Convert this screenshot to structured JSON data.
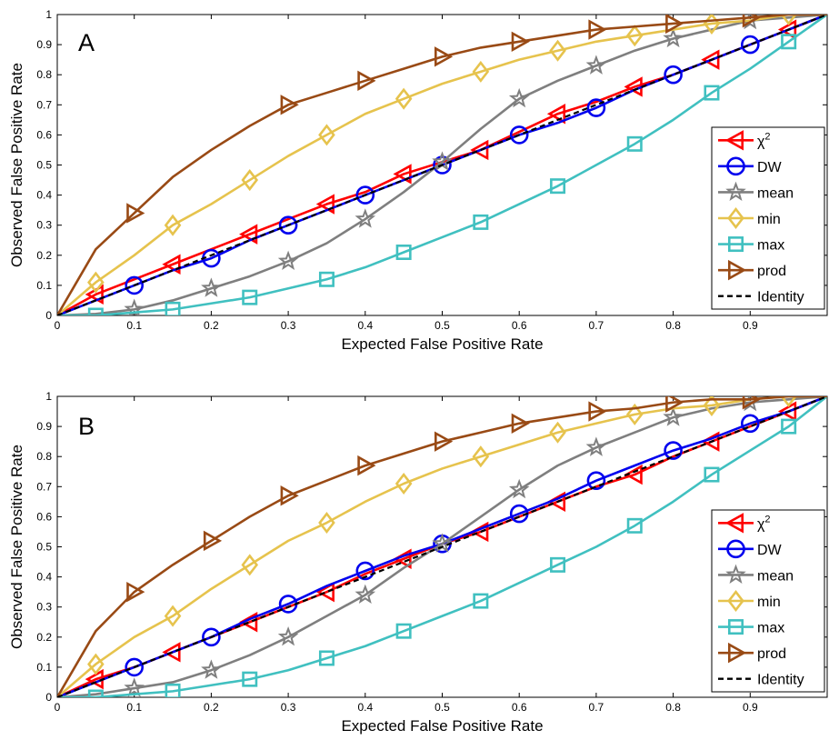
{
  "chart_data": [
    {
      "type": "line",
      "panel_label": "A",
      "xlabel": "Expected False Positive Rate",
      "ylabel": "Observed False Positive Rate",
      "xlim": [
        0,
        1
      ],
      "ylim": [
        0,
        1
      ],
      "xticks": [
        0,
        0.1,
        0.2,
        0.3,
        0.4,
        0.5,
        0.6,
        0.7,
        0.8,
        0.9
      ],
      "xtick_labels": [
        "0",
        "0.1",
        "0.2",
        "0.3",
        "0.4",
        "0.5",
        "0.6",
        "0.7",
        "0.8",
        "0.9"
      ],
      "yticks": [
        0,
        0.1,
        0.2,
        0.3,
        0.4,
        0.5,
        0.6,
        0.7,
        0.8,
        0.9,
        1
      ],
      "ytick_labels": [
        "0",
        "0.1",
        "0.2",
        "0.3",
        "0.4",
        "0.5",
        "0.6",
        "0.7",
        "0.8",
        "0.9",
        "1"
      ],
      "grid": false,
      "legend_position": "right",
      "series": [
        {
          "name": "χ",
          "name_sup": "2",
          "color": "#ff0000",
          "marker": "triangle-left",
          "x": [
            0,
            0.05,
            0.1,
            0.15,
            0.2,
            0.25,
            0.3,
            0.35,
            0.4,
            0.45,
            0.5,
            0.55,
            0.6,
            0.65,
            0.7,
            0.75,
            0.8,
            0.85,
            0.9,
            0.95,
            1
          ],
          "y": [
            0,
            0.07,
            0.12,
            0.17,
            0.22,
            0.27,
            0.32,
            0.37,
            0.41,
            0.47,
            0.51,
            0.55,
            0.61,
            0.67,
            0.71,
            0.76,
            0.8,
            0.85,
            0.9,
            0.95,
            1
          ],
          "marker_x": [
            0.05,
            0.15,
            0.25,
            0.35,
            0.45,
            0.55,
            0.65,
            0.75,
            0.85,
            0.95
          ]
        },
        {
          "name": "DW",
          "color": "#0000ee",
          "marker": "circle",
          "x": [
            0,
            0.05,
            0.1,
            0.15,
            0.2,
            0.25,
            0.3,
            0.35,
            0.4,
            0.45,
            0.5,
            0.55,
            0.6,
            0.65,
            0.7,
            0.75,
            0.8,
            0.85,
            0.9,
            0.95,
            1
          ],
          "y": [
            0,
            0.05,
            0.1,
            0.15,
            0.19,
            0.25,
            0.3,
            0.35,
            0.4,
            0.45,
            0.5,
            0.55,
            0.6,
            0.64,
            0.69,
            0.75,
            0.8,
            0.85,
            0.9,
            0.95,
            1
          ],
          "marker_x": [
            0.1,
            0.2,
            0.3,
            0.4,
            0.5,
            0.6,
            0.7,
            0.8,
            0.9
          ]
        },
        {
          "name": "mean",
          "color": "#7f7f7f",
          "marker": "star",
          "x": [
            0,
            0.05,
            0.1,
            0.15,
            0.2,
            0.25,
            0.3,
            0.35,
            0.4,
            0.45,
            0.5,
            0.55,
            0.6,
            0.65,
            0.7,
            0.75,
            0.8,
            0.85,
            0.9,
            0.95,
            1
          ],
          "y": [
            0,
            0.005,
            0.02,
            0.05,
            0.09,
            0.13,
            0.18,
            0.24,
            0.32,
            0.41,
            0.51,
            0.62,
            0.72,
            0.78,
            0.83,
            0.88,
            0.92,
            0.95,
            0.98,
            0.99,
            1
          ],
          "marker_x": [
            0.1,
            0.2,
            0.3,
            0.4,
            0.5,
            0.6,
            0.7,
            0.8,
            0.9
          ]
        },
        {
          "name": "min",
          "color": "#e6c34d",
          "marker": "diamond",
          "x": [
            0,
            0.05,
            0.1,
            0.15,
            0.2,
            0.25,
            0.3,
            0.35,
            0.4,
            0.45,
            0.5,
            0.55,
            0.6,
            0.65,
            0.7,
            0.75,
            0.8,
            0.85,
            0.9,
            0.95,
            1
          ],
          "y": [
            0,
            0.11,
            0.2,
            0.3,
            0.37,
            0.45,
            0.53,
            0.6,
            0.67,
            0.72,
            0.77,
            0.81,
            0.85,
            0.88,
            0.91,
            0.93,
            0.95,
            0.97,
            0.98,
            1.0,
            1
          ],
          "marker_x": [
            0.05,
            0.15,
            0.25,
            0.35,
            0.45,
            0.55,
            0.65,
            0.75,
            0.85,
            0.95
          ]
        },
        {
          "name": "max",
          "color": "#40c0c0",
          "marker": "square",
          "x": [
            0,
            0.05,
            0.1,
            0.15,
            0.2,
            0.25,
            0.3,
            0.35,
            0.4,
            0.45,
            0.5,
            0.55,
            0.6,
            0.65,
            0.7,
            0.75,
            0.8,
            0.85,
            0.9,
            0.95,
            1
          ],
          "y": [
            0,
            0.0,
            0.01,
            0.02,
            0.04,
            0.06,
            0.09,
            0.12,
            0.16,
            0.21,
            0.26,
            0.31,
            0.37,
            0.43,
            0.5,
            0.57,
            0.65,
            0.74,
            0.82,
            0.91,
            1
          ],
          "marker_x": [
            0.05,
            0.15,
            0.25,
            0.35,
            0.45,
            0.55,
            0.65,
            0.75,
            0.85,
            0.95
          ]
        },
        {
          "name": "prod",
          "color": "#994a15",
          "marker": "triangle-right",
          "x": [
            0,
            0.05,
            0.1,
            0.15,
            0.2,
            0.25,
            0.3,
            0.35,
            0.4,
            0.45,
            0.5,
            0.55,
            0.6,
            0.65,
            0.7,
            0.75,
            0.8,
            0.85,
            0.9,
            0.95,
            1
          ],
          "y": [
            0,
            0.22,
            0.34,
            0.46,
            0.55,
            0.63,
            0.7,
            0.74,
            0.78,
            0.82,
            0.86,
            0.89,
            0.91,
            0.93,
            0.95,
            0.96,
            0.97,
            0.98,
            0.99,
            1.0,
            1
          ],
          "marker_x": [
            0.1,
            0.3,
            0.4,
            0.5,
            0.6,
            0.7,
            0.8,
            0.9
          ]
        },
        {
          "name": "Identity",
          "color": "#000000",
          "marker": "none",
          "dashed": true,
          "x": [
            0,
            1
          ],
          "y": [
            0,
            1
          ],
          "marker_x": []
        }
      ]
    },
    {
      "type": "line",
      "panel_label": "B",
      "xlabel": "Expected False Positive Rate",
      "ylabel": "Observed False Positive Rate",
      "xlim": [
        0,
        1
      ],
      "ylim": [
        0,
        1
      ],
      "xticks": [
        0,
        0.1,
        0.2,
        0.3,
        0.4,
        0.5,
        0.6,
        0.7,
        0.8,
        0.9
      ],
      "xtick_labels": [
        "0",
        "0.1",
        "0.2",
        "0.3",
        "0.4",
        "0.5",
        "0.6",
        "0.7",
        "0.8",
        "0.9"
      ],
      "yticks": [
        0,
        0.1,
        0.2,
        0.3,
        0.4,
        0.5,
        0.6,
        0.7,
        0.8,
        0.9,
        1
      ],
      "ytick_labels": [
        "0",
        "0.1",
        "0.2",
        "0.3",
        "0.4",
        "0.5",
        "0.6",
        "0.7",
        "0.8",
        "0.9",
        "1"
      ],
      "grid": false,
      "legend_position": "right",
      "series": [
        {
          "name": "χ",
          "name_sup": "2",
          "color": "#ff0000",
          "marker": "triangle-left",
          "x": [
            0,
            0.05,
            0.1,
            0.15,
            0.2,
            0.25,
            0.3,
            0.35,
            0.4,
            0.45,
            0.5,
            0.55,
            0.6,
            0.65,
            0.7,
            0.75,
            0.8,
            0.85,
            0.9,
            0.95,
            1
          ],
          "y": [
            0,
            0.06,
            0.1,
            0.15,
            0.2,
            0.25,
            0.3,
            0.35,
            0.41,
            0.46,
            0.51,
            0.55,
            0.6,
            0.65,
            0.7,
            0.74,
            0.8,
            0.85,
            0.9,
            0.95,
            1
          ],
          "marker_x": [
            0.05,
            0.15,
            0.25,
            0.35,
            0.45,
            0.55,
            0.65,
            0.75,
            0.85,
            0.95
          ]
        },
        {
          "name": "DW",
          "color": "#0000ee",
          "marker": "circle",
          "x": [
            0,
            0.05,
            0.1,
            0.15,
            0.2,
            0.25,
            0.3,
            0.35,
            0.4,
            0.45,
            0.5,
            0.55,
            0.6,
            0.65,
            0.7,
            0.75,
            0.8,
            0.85,
            0.9,
            0.95,
            1
          ],
          "y": [
            0,
            0.05,
            0.1,
            0.15,
            0.2,
            0.26,
            0.31,
            0.37,
            0.42,
            0.47,
            0.51,
            0.56,
            0.61,
            0.66,
            0.72,
            0.77,
            0.82,
            0.86,
            0.91,
            0.95,
            1
          ],
          "marker_x": [
            0.1,
            0.2,
            0.3,
            0.4,
            0.5,
            0.6,
            0.7,
            0.8,
            0.9
          ]
        },
        {
          "name": "mean",
          "color": "#7f7f7f",
          "marker": "star",
          "x": [
            0,
            0.05,
            0.1,
            0.15,
            0.2,
            0.25,
            0.3,
            0.35,
            0.4,
            0.45,
            0.5,
            0.55,
            0.6,
            0.65,
            0.7,
            0.75,
            0.8,
            0.85,
            0.9,
            0.95,
            1
          ],
          "y": [
            0,
            0.01,
            0.03,
            0.05,
            0.09,
            0.14,
            0.2,
            0.27,
            0.34,
            0.43,
            0.51,
            0.6,
            0.69,
            0.77,
            0.83,
            0.88,
            0.93,
            0.96,
            0.98,
            0.99,
            1
          ],
          "marker_x": [
            0.1,
            0.2,
            0.3,
            0.4,
            0.5,
            0.6,
            0.7,
            0.8,
            0.9
          ]
        },
        {
          "name": "min",
          "color": "#e6c34d",
          "marker": "diamond",
          "x": [
            0,
            0.05,
            0.1,
            0.15,
            0.2,
            0.25,
            0.3,
            0.35,
            0.4,
            0.45,
            0.5,
            0.55,
            0.6,
            0.65,
            0.7,
            0.75,
            0.8,
            0.85,
            0.9,
            0.95,
            1
          ],
          "y": [
            0,
            0.11,
            0.2,
            0.27,
            0.36,
            0.44,
            0.52,
            0.58,
            0.65,
            0.71,
            0.76,
            0.8,
            0.84,
            0.88,
            0.91,
            0.94,
            0.96,
            0.97,
            0.99,
            1.0,
            1
          ],
          "marker_x": [
            0.05,
            0.15,
            0.25,
            0.35,
            0.45,
            0.55,
            0.65,
            0.75,
            0.85,
            0.95
          ]
        },
        {
          "name": "max",
          "color": "#40c0c0",
          "marker": "square",
          "x": [
            0,
            0.05,
            0.1,
            0.15,
            0.2,
            0.25,
            0.3,
            0.35,
            0.4,
            0.45,
            0.5,
            0.55,
            0.6,
            0.65,
            0.7,
            0.75,
            0.8,
            0.85,
            0.9,
            0.95,
            1
          ],
          "y": [
            0,
            0.0,
            0.01,
            0.02,
            0.04,
            0.06,
            0.09,
            0.13,
            0.17,
            0.22,
            0.27,
            0.32,
            0.38,
            0.44,
            0.5,
            0.57,
            0.65,
            0.74,
            0.82,
            0.9,
            1
          ],
          "marker_x": [
            0.05,
            0.15,
            0.25,
            0.35,
            0.45,
            0.55,
            0.65,
            0.75,
            0.85,
            0.95
          ]
        },
        {
          "name": "prod",
          "color": "#994a15",
          "marker": "triangle-right",
          "x": [
            0,
            0.05,
            0.1,
            0.15,
            0.2,
            0.25,
            0.3,
            0.35,
            0.4,
            0.45,
            0.5,
            0.55,
            0.6,
            0.65,
            0.7,
            0.75,
            0.8,
            0.85,
            0.9,
            0.95,
            1
          ],
          "y": [
            0,
            0.22,
            0.35,
            0.44,
            0.52,
            0.6,
            0.67,
            0.72,
            0.77,
            0.81,
            0.85,
            0.88,
            0.91,
            0.93,
            0.95,
            0.96,
            0.98,
            0.99,
            0.99,
            1.0,
            1
          ],
          "marker_x": [
            0.1,
            0.2,
            0.3,
            0.4,
            0.5,
            0.6,
            0.7,
            0.8,
            0.9
          ]
        },
        {
          "name": "Identity",
          "color": "#000000",
          "marker": "none",
          "dashed": true,
          "x": [
            0,
            1
          ],
          "y": [
            0,
            1
          ],
          "marker_x": []
        }
      ]
    }
  ]
}
